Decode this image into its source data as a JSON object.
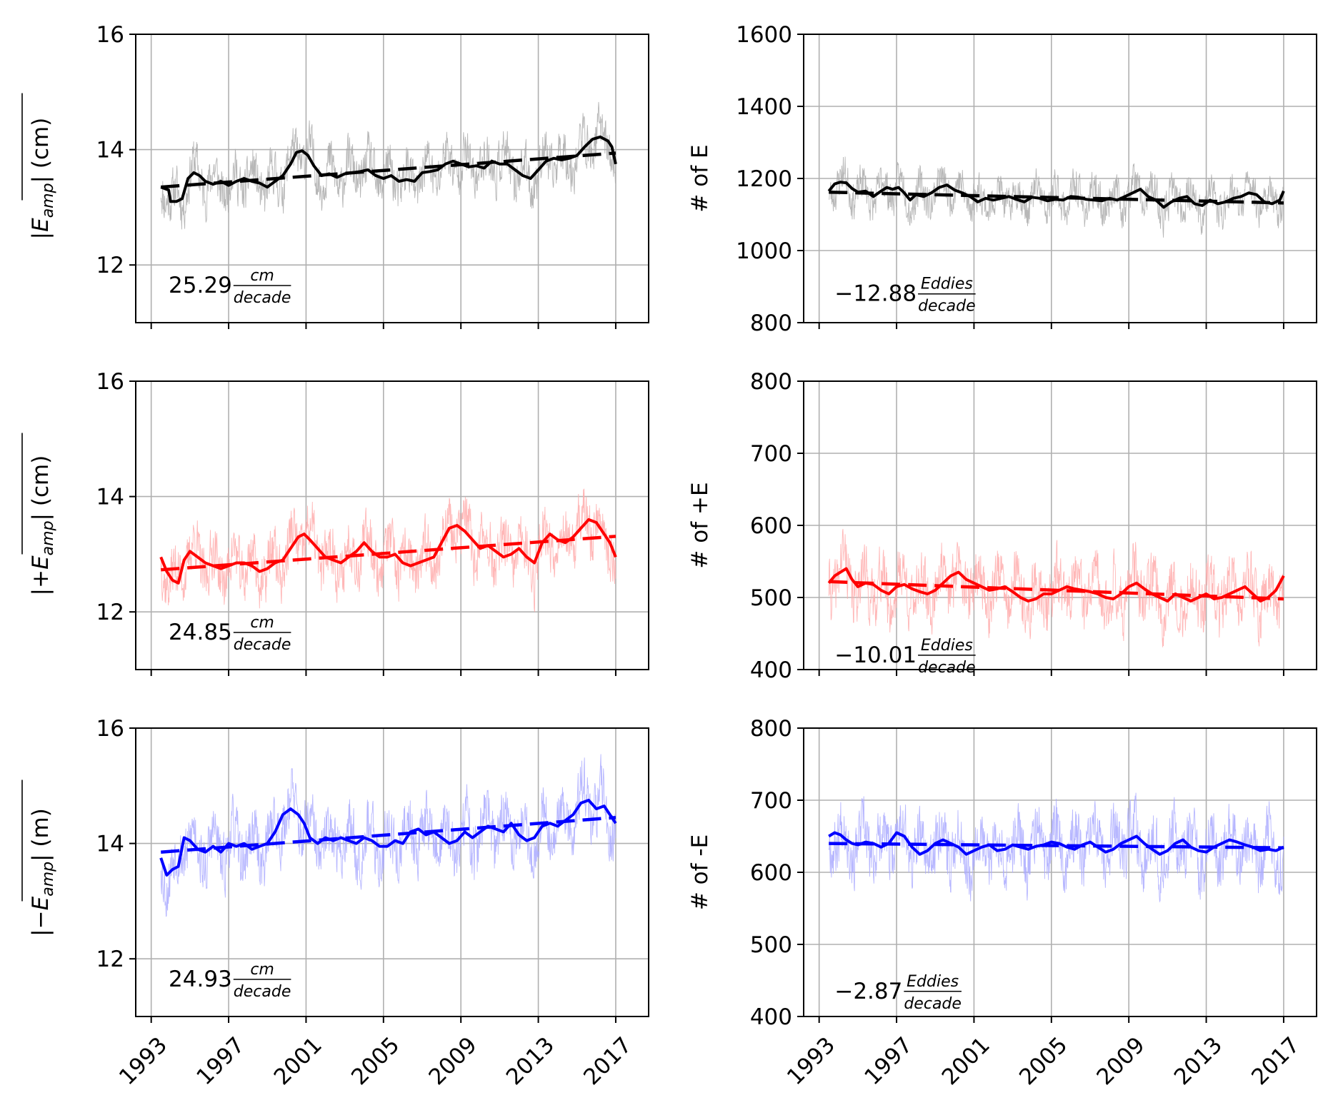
{
  "chart_data": [
    {
      "type": "line",
      "panel": "top-left",
      "ylabel_parts": {
        "pre": "",
        "symbol": "E",
        "sub": "amp",
        "post": " (cm)"
      },
      "ylim": [
        11,
        16
      ],
      "yticks": [
        12,
        14,
        16
      ],
      "xlim": [
        1992.2,
        2018.7
      ],
      "xticks": [
        1993,
        1997,
        2001,
        2005,
        2009,
        2013,
        2017
      ],
      "show_xtick_labels": false,
      "grid": true,
      "color": "#000000",
      "raw_color": "#aaaaaa",
      "raw_seed": 11,
      "raw_amplitude": 0.55,
      "smooth": {
        "x": [
          1993.5,
          1993.9,
          1994.0,
          1994.3,
          1994.6,
          1994.9,
          1995.2,
          1995.5,
          1995.8,
          1996.2,
          1996.6,
          1997.0,
          1997.4,
          1997.8,
          1998.2,
          1998.6,
          1999.0,
          1999.4,
          1999.8,
          2000.2,
          2000.5,
          2000.8,
          2001.1,
          2001.4,
          2001.8,
          2002.2,
          2002.6,
          2003.0,
          2003.4,
          2003.8,
          2004.2,
          2004.6,
          2005.0,
          2005.4,
          2005.8,
          2006.2,
          2006.6,
          2007.0,
          2007.4,
          2007.8,
          2008.2,
          2008.6,
          2009.0,
          2009.4,
          2009.8,
          2010.2,
          2010.6,
          2011.0,
          2011.4,
          2011.8,
          2012.2,
          2012.6,
          2013.0,
          2013.4,
          2013.8,
          2014.2,
          2014.6,
          2015.0,
          2015.4,
          2015.8,
          2016.2,
          2016.6,
          2016.8,
          2017.0
        ],
        "y": [
          13.35,
          13.3,
          13.1,
          13.1,
          13.15,
          13.5,
          13.6,
          13.55,
          13.45,
          13.4,
          13.45,
          13.38,
          13.45,
          13.5,
          13.45,
          13.42,
          13.35,
          13.45,
          13.55,
          13.75,
          13.95,
          13.98,
          13.9,
          13.72,
          13.55,
          13.58,
          13.52,
          13.58,
          13.6,
          13.62,
          13.65,
          13.55,
          13.5,
          13.55,
          13.45,
          13.48,
          13.45,
          13.6,
          13.62,
          13.65,
          13.75,
          13.8,
          13.75,
          13.7,
          13.72,
          13.68,
          13.8,
          13.75,
          13.75,
          13.65,
          13.55,
          13.5,
          13.65,
          13.8,
          13.85,
          13.82,
          13.85,
          13.9,
          14.05,
          14.18,
          14.22,
          14.15,
          14.05,
          13.75
        ]
      },
      "trend": {
        "x": [
          1993.5,
          2017.0
        ],
        "y": [
          13.35,
          13.94
        ]
      },
      "annotation": {
        "value": "25.29",
        "num": "cm",
        "den": "decade",
        "x": 1993.9,
        "y": 11.52
      }
    },
    {
      "type": "line",
      "panel": "top-right",
      "ylabel_plain": "# of E",
      "ylim": [
        800,
        1600
      ],
      "yticks": [
        800,
        1000,
        1200,
        1400,
        1600
      ],
      "xlim": [
        1992.2,
        2018.7
      ],
      "xticks": [
        1993,
        1997,
        2001,
        2005,
        2009,
        2013,
        2017
      ],
      "show_xtick_labels": false,
      "grid": true,
      "color": "#000000",
      "raw_color": "#aaaaaa",
      "raw_seed": 23,
      "raw_amplitude": 70,
      "smooth": {
        "x": [
          1993.5,
          1993.8,
          1994.1,
          1994.4,
          1994.7,
          1995.0,
          1995.4,
          1995.8,
          1996.2,
          1996.5,
          1996.8,
          1997.1,
          1997.4,
          1997.7,
          1998.0,
          1998.4,
          1998.8,
          1999.2,
          1999.6,
          2000.0,
          2000.4,
          2000.8,
          2001.2,
          2001.6,
          2002.0,
          2002.4,
          2002.8,
          2003.2,
          2003.6,
          2004.0,
          2004.4,
          2004.8,
          2005.2,
          2005.6,
          2006.0,
          2006.4,
          2006.8,
          2007.2,
          2007.6,
          2008.0,
          2008.4,
          2008.8,
          2009.2,
          2009.6,
          2010.0,
          2010.4,
          2010.8,
          2011.2,
          2011.6,
          2012.0,
          2012.4,
          2012.8,
          2013.2,
          2013.6,
          2014.0,
          2014.4,
          2014.8,
          2015.2,
          2015.6,
          2016.0,
          2016.4,
          2016.8,
          2017.0
        ],
        "y": [
          1165,
          1185,
          1190,
          1188,
          1172,
          1162,
          1165,
          1150,
          1165,
          1175,
          1170,
          1175,
          1160,
          1140,
          1155,
          1150,
          1160,
          1175,
          1182,
          1168,
          1160,
          1150,
          1135,
          1145,
          1140,
          1145,
          1150,
          1142,
          1135,
          1148,
          1145,
          1138,
          1142,
          1140,
          1150,
          1148,
          1142,
          1140,
          1138,
          1145,
          1140,
          1150,
          1160,
          1170,
          1150,
          1140,
          1120,
          1135,
          1145,
          1150,
          1130,
          1125,
          1140,
          1130,
          1135,
          1145,
          1150,
          1160,
          1155,
          1135,
          1130,
          1140,
          1165
        ]
      },
      "trend": {
        "x": [
          1993.5,
          2017.0
        ],
        "y": [
          1162,
          1132
        ]
      },
      "annotation": {
        "value": "−12.88",
        "num": "Eddies",
        "den": "decade",
        "x": 1993.8,
        "y": 860
      }
    },
    {
      "type": "line",
      "panel": "middle-left",
      "ylabel_parts": {
        "pre": "+",
        "symbol": "E",
        "sub": "amp",
        "post": " (cm)"
      },
      "ylim": [
        11,
        16
      ],
      "yticks": [
        12,
        14,
        16
      ],
      "xlim": [
        1992.2,
        2018.7
      ],
      "xticks": [
        1993,
        1997,
        2001,
        2005,
        2009,
        2013,
        2017
      ],
      "show_xtick_labels": false,
      "grid": true,
      "color": "#ff0000",
      "raw_color": "#ffaaaa",
      "raw_seed": 37,
      "raw_amplitude": 0.65,
      "smooth": {
        "x": [
          1993.5,
          1993.8,
          1994.1,
          1994.4,
          1994.7,
          1995.0,
          1995.4,
          1995.8,
          1996.2,
          1996.6,
          1997.0,
          1997.4,
          1997.8,
          1998.2,
          1998.6,
          1999.0,
          1999.4,
          1999.8,
          2000.2,
          2000.6,
          2000.9,
          2001.2,
          2001.6,
          2002.0,
          2002.4,
          2002.8,
          2003.2,
          2003.6,
          2004.0,
          2004.4,
          2004.8,
          2005.2,
          2005.6,
          2006.0,
          2006.4,
          2006.8,
          2007.2,
          2007.6,
          2008.0,
          2008.4,
          2008.8,
          2009.2,
          2009.6,
          2010.0,
          2010.4,
          2010.8,
          2011.2,
          2011.6,
          2012.0,
          2012.4,
          2012.8,
          2013.2,
          2013.6,
          2014.0,
          2014.4,
          2014.8,
          2015.2,
          2015.6,
          2016.0,
          2016.4,
          2016.7,
          2017.0
        ],
        "y": [
          12.95,
          12.7,
          12.55,
          12.5,
          12.9,
          13.05,
          12.95,
          12.85,
          12.8,
          12.75,
          12.8,
          12.85,
          12.85,
          12.8,
          12.7,
          12.75,
          12.85,
          12.9,
          13.1,
          13.3,
          13.35,
          13.25,
          13.1,
          12.95,
          12.9,
          12.85,
          12.95,
          13.05,
          13.2,
          13.05,
          12.95,
          12.95,
          13.0,
          12.85,
          12.8,
          12.85,
          12.9,
          12.95,
          13.2,
          13.45,
          13.5,
          13.4,
          13.25,
          13.1,
          13.15,
          13.05,
          12.95,
          13.0,
          13.1,
          12.95,
          12.85,
          13.2,
          13.35,
          13.25,
          13.2,
          13.3,
          13.45,
          13.6,
          13.55,
          13.35,
          13.2,
          12.95
        ]
      },
      "trend": {
        "x": [
          1993.5,
          2017.0
        ],
        "y": [
          12.73,
          13.31
        ]
      },
      "annotation": {
        "value": "24.85",
        "num": "cm",
        "den": "decade",
        "x": 1993.9,
        "y": 11.52
      }
    },
    {
      "type": "line",
      "panel": "middle-right",
      "ylabel_plain": "# of +E",
      "ylim": [
        400,
        800
      ],
      "yticks": [
        400,
        500,
        600,
        700,
        800
      ],
      "xlim": [
        1992.2,
        2018.7
      ],
      "xticks": [
        1993,
        1997,
        2001,
        2005,
        2009,
        2013,
        2017
      ],
      "show_xtick_labels": false,
      "grid": true,
      "color": "#ff0000",
      "raw_color": "#ffaaaa",
      "raw_seed": 41,
      "raw_amplitude": 55,
      "smooth": {
        "x": [
          1993.5,
          1993.8,
          1994.1,
          1994.4,
          1994.7,
          1995.0,
          1995.4,
          1995.8,
          1996.2,
          1996.6,
          1997.0,
          1997.4,
          1997.8,
          1998.2,
          1998.6,
          1999.0,
          1999.4,
          1999.8,
          2000.2,
          2000.6,
          2001.0,
          2001.4,
          2001.8,
          2002.2,
          2002.6,
          2003.0,
          2003.4,
          2003.8,
          2004.2,
          2004.6,
          2005.0,
          2005.4,
          2005.8,
          2006.2,
          2006.6,
          2007.0,
          2007.4,
          2007.8,
          2008.2,
          2008.6,
          2009.0,
          2009.4,
          2009.8,
          2010.2,
          2010.6,
          2011.0,
          2011.4,
          2011.8,
          2012.2,
          2012.6,
          2013.0,
          2013.4,
          2013.8,
          2014.2,
          2014.6,
          2015.0,
          2015.4,
          2015.8,
          2016.2,
          2016.6,
          2017.0
        ],
        "y": [
          520,
          530,
          535,
          540,
          525,
          515,
          520,
          518,
          510,
          505,
          515,
          518,
          512,
          508,
          505,
          510,
          520,
          530,
          535,
          525,
          520,
          515,
          510,
          512,
          515,
          508,
          500,
          495,
          498,
          505,
          505,
          510,
          515,
          512,
          510,
          508,
          505,
          500,
          498,
          505,
          515,
          520,
          512,
          505,
          500,
          495,
          505,
          500,
          495,
          500,
          505,
          498,
          500,
          505,
          510,
          515,
          505,
          495,
          500,
          510,
          530
        ]
      },
      "trend": {
        "x": [
          1993.5,
          2017.0
        ],
        "y": [
          522,
          498
        ]
      },
      "annotation": {
        "value": "−10.01",
        "num": "Eddies",
        "den": "decade",
        "x": 1993.8,
        "y": 410
      }
    },
    {
      "type": "line",
      "panel": "bottom-left",
      "ylabel_parts": {
        "pre": "−",
        "symbol": "E",
        "sub": "amp",
        "post": "  (m)"
      },
      "ylim": [
        11,
        16
      ],
      "yticks": [
        12,
        14,
        16
      ],
      "xlim": [
        1992.2,
        2018.7
      ],
      "xticks": [
        1993,
        1997,
        2001,
        2005,
        2009,
        2013,
        2017
      ],
      "show_xtick_labels": true,
      "grid": true,
      "color": "#0000ff",
      "raw_color": "#aaaaff",
      "raw_seed": 53,
      "raw_amplitude": 0.7,
      "smooth": {
        "x": [
          1993.5,
          1993.8,
          1994.1,
          1994.4,
          1994.7,
          1995.0,
          1995.4,
          1995.8,
          1996.2,
          1996.6,
          1997.0,
          1997.4,
          1997.8,
          1998.2,
          1998.6,
          1999.0,
          1999.4,
          1999.8,
          2000.2,
          2000.6,
          2000.9,
          2001.2,
          2001.6,
          2002.0,
          2002.4,
          2002.8,
          2003.2,
          2003.6,
          2004.0,
          2004.4,
          2004.8,
          2005.2,
          2005.6,
          2006.0,
          2006.4,
          2006.8,
          2007.2,
          2007.6,
          2008.0,
          2008.4,
          2008.8,
          2009.2,
          2009.6,
          2010.0,
          2010.4,
          2010.8,
          2011.2,
          2011.6,
          2012.0,
          2012.4,
          2012.8,
          2013.2,
          2013.6,
          2014.0,
          2014.4,
          2014.8,
          2015.2,
          2015.6,
          2016.0,
          2016.4,
          2016.7,
          2017.0
        ],
        "y": [
          13.75,
          13.45,
          13.55,
          13.6,
          14.1,
          14.05,
          13.9,
          13.85,
          13.95,
          13.85,
          14.0,
          13.95,
          14.0,
          13.9,
          13.95,
          14.0,
          14.2,
          14.5,
          14.6,
          14.5,
          14.35,
          14.1,
          14.0,
          14.1,
          14.05,
          14.1,
          14.05,
          14.0,
          14.1,
          14.05,
          13.95,
          13.95,
          14.05,
          14.0,
          14.2,
          14.25,
          14.15,
          14.2,
          14.1,
          14.0,
          14.05,
          14.2,
          14.1,
          14.2,
          14.3,
          14.25,
          14.2,
          14.35,
          14.15,
          14.05,
          14.1,
          14.3,
          14.35,
          14.3,
          14.4,
          14.5,
          14.7,
          14.75,
          14.6,
          14.65,
          14.5,
          14.35
        ]
      },
      "trend": {
        "x": [
          1993.5,
          2017.0
        ],
        "y": [
          13.85,
          14.45
        ]
      },
      "annotation": {
        "value": "24.93",
        "num": "cm",
        "den": "decade",
        "x": 1993.9,
        "y": 11.52
      }
    },
    {
      "type": "line",
      "panel": "bottom-right",
      "ylabel_plain": "# of -E",
      "ylim": [
        400,
        800
      ],
      "yticks": [
        400,
        500,
        600,
        700,
        800
      ],
      "xlim": [
        1992.2,
        2018.7
      ],
      "xticks": [
        1993,
        1997,
        2001,
        2005,
        2009,
        2013,
        2017
      ],
      "show_xtick_labels": true,
      "grid": true,
      "color": "#0000ff",
      "raw_color": "#aaaaff",
      "raw_seed": 67,
      "raw_amplitude": 55,
      "smooth": {
        "x": [
          1993.5,
          1993.8,
          1994.1,
          1994.4,
          1994.7,
          1995.0,
          1995.4,
          1995.8,
          1996.2,
          1996.6,
          1997.0,
          1997.4,
          1997.8,
          1998.2,
          1998.6,
          1999.0,
          1999.4,
          1999.8,
          2000.2,
          2000.6,
          2001.0,
          2001.4,
          2001.8,
          2002.2,
          2002.6,
          2003.0,
          2003.4,
          2003.8,
          2004.2,
          2004.6,
          2005.0,
          2005.4,
          2005.8,
          2006.2,
          2006.6,
          2007.0,
          2007.4,
          2007.8,
          2008.2,
          2008.6,
          2009.0,
          2009.4,
          2009.8,
          2010.2,
          2010.6,
          2011.0,
          2011.4,
          2011.8,
          2012.2,
          2012.6,
          2013.0,
          2013.4,
          2013.8,
          2014.2,
          2014.6,
          2015.0,
          2015.4,
          2015.8,
          2016.2,
          2016.6,
          2017.0
        ],
        "y": [
          650,
          655,
          652,
          645,
          640,
          638,
          642,
          640,
          635,
          640,
          655,
          650,
          635,
          625,
          630,
          640,
          645,
          640,
          635,
          625,
          630,
          635,
          638,
          630,
          632,
          638,
          635,
          632,
          636,
          638,
          642,
          640,
          635,
          632,
          638,
          642,
          635,
          628,
          632,
          640,
          645,
          650,
          640,
          632,
          625,
          630,
          640,
          645,
          635,
          630,
          628,
          635,
          640,
          645,
          642,
          638,
          635,
          630,
          632,
          630,
          635
        ]
      },
      "trend": {
        "x": [
          1993.5,
          2017.0
        ],
        "y": [
          640,
          634
        ]
      },
      "annotation": {
        "value": "−2.87",
        "num": "Eddies",
        "den": "decade",
        "x": 1993.8,
        "y": 425
      }
    }
  ]
}
